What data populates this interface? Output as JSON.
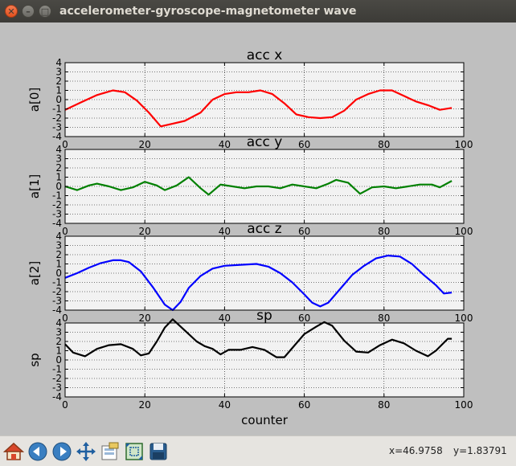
{
  "window": {
    "title": "accelerometer-gyroscope-magnetometer wave",
    "close_glyph": "✕",
    "min_glyph": "–",
    "max_glyph": "□"
  },
  "toolbar": {
    "buttons": [
      {
        "name": "home-button",
        "icon": "home-icon"
      },
      {
        "name": "back-button",
        "icon": "left-arrow-icon"
      },
      {
        "name": "forward-button",
        "icon": "right-arrow-icon"
      },
      {
        "name": "pan-button",
        "icon": "move-icon"
      },
      {
        "name": "configure-subplots-button",
        "icon": "subplots-icon"
      },
      {
        "name": "zoom-button",
        "icon": "zoom-rect-icon"
      },
      {
        "name": "save-button",
        "icon": "floppy-icon"
      }
    ],
    "x_readout": "x=46.9758",
    "y_readout": "y=1.83791"
  },
  "chart_data": [
    {
      "type": "line",
      "title": "acc x",
      "ylabel": "a[0]",
      "xlabel": "",
      "xlim": [
        0,
        100
      ],
      "ylim": [
        -4,
        4
      ],
      "xticks": [
        0,
        20,
        40,
        60,
        80,
        100
      ],
      "yticks": [
        -4,
        -3,
        -2,
        -1,
        0,
        1,
        2,
        3,
        4
      ],
      "grid": true,
      "color": "#ff0000",
      "series": [
        {
          "x": [
            0,
            4,
            8,
            12,
            15,
            18,
            21,
            24,
            27,
            30,
            34,
            37,
            40,
            43,
            46,
            49,
            52,
            55,
            58,
            61,
            64,
            67,
            70,
            73,
            76,
            79,
            82,
            85,
            88,
            91,
            94,
            97
          ],
          "y": [
            -1.1,
            -0.3,
            0.5,
            1.0,
            0.8,
            -0.1,
            -1.4,
            -2.9,
            -2.6,
            -2.3,
            -1.4,
            0.0,
            0.6,
            0.8,
            0.8,
            1.0,
            0.6,
            -0.4,
            -1.6,
            -1.9,
            -2.0,
            -1.9,
            -1.2,
            0.0,
            0.6,
            1.0,
            1.0,
            0.4,
            -0.2,
            -0.6,
            -1.1,
            -0.9
          ]
        }
      ]
    },
    {
      "type": "line",
      "title": "acc y",
      "ylabel": "a[1]",
      "xlabel": "",
      "xlim": [
        0,
        100
      ],
      "ylim": [
        -4,
        4
      ],
      "xticks": [
        0,
        20,
        40,
        60,
        80,
        100
      ],
      "yticks": [
        -4,
        -3,
        -2,
        -1,
        0,
        1,
        2,
        3,
        4
      ],
      "grid": true,
      "color": "#008000",
      "series": [
        {
          "x": [
            0,
            3,
            6,
            8,
            11,
            14,
            17,
            20,
            23,
            25,
            28,
            31,
            34,
            36,
            39,
            42,
            45,
            48,
            51,
            54,
            57,
            60,
            63,
            66,
            68,
            71,
            74,
            77,
            80,
            83,
            86,
            89,
            92,
            94,
            97
          ],
          "y": [
            0.0,
            -0.4,
            0.1,
            0.3,
            0.0,
            -0.4,
            -0.1,
            0.5,
            0.1,
            -0.4,
            0.1,
            1.0,
            -0.2,
            -0.9,
            0.2,
            0.0,
            -0.2,
            0.0,
            0.0,
            -0.2,
            0.2,
            0.0,
            -0.2,
            0.3,
            0.7,
            0.4,
            -0.8,
            -0.1,
            0.0,
            -0.2,
            0.0,
            0.2,
            0.2,
            -0.1,
            0.6
          ]
        }
      ]
    },
    {
      "type": "line",
      "title": "acc z",
      "ylabel": "a[2]",
      "xlabel": "",
      "xlim": [
        0,
        100
      ],
      "ylim": [
        -4,
        4
      ],
      "xticks": [
        0,
        20,
        40,
        60,
        80,
        100
      ],
      "yticks": [
        -4,
        -3,
        -2,
        -1,
        0,
        1,
        2,
        3,
        4
      ],
      "grid": true,
      "color": "#0000ff",
      "series": [
        {
          "x": [
            0,
            3,
            6,
            9,
            12,
            14,
            16,
            19,
            22,
            25,
            27,
            29,
            31,
            34,
            37,
            40,
            44,
            48,
            51,
            54,
            57,
            60,
            62,
            64,
            66,
            69,
            72,
            75,
            78,
            81,
            84,
            87,
            90,
            93,
            95,
            97
          ],
          "y": [
            -0.5,
            0.0,
            0.6,
            1.1,
            1.4,
            1.4,
            1.2,
            0.2,
            -1.5,
            -3.4,
            -4.0,
            -3.1,
            -1.6,
            -0.3,
            0.5,
            0.8,
            0.9,
            1.0,
            0.7,
            0.0,
            -1.0,
            -2.3,
            -3.2,
            -3.6,
            -3.2,
            -1.7,
            -0.2,
            0.8,
            1.6,
            1.9,
            1.8,
            1.0,
            -0.2,
            -1.3,
            -2.2,
            -2.1
          ]
        }
      ]
    },
    {
      "type": "line",
      "title": "sp",
      "ylabel": "sp",
      "xlabel": "counter",
      "xlim": [
        0,
        100
      ],
      "ylim": [
        -4,
        4
      ],
      "xticks": [
        0,
        20,
        40,
        60,
        80,
        100
      ],
      "yticks": [
        -4,
        -3,
        -2,
        -1,
        0,
        1,
        2,
        3,
        4
      ],
      "grid": true,
      "color": "#000000",
      "series": [
        {
          "x": [
            0,
            2,
            5,
            8,
            11,
            14,
            17,
            19,
            21,
            23,
            25,
            27,
            29,
            31,
            33,
            35,
            37,
            39,
            41,
            44,
            47,
            50,
            53,
            55,
            57,
            60,
            63,
            65,
            67,
            70,
            73,
            76,
            79,
            82,
            85,
            88,
            91,
            93,
            96,
            97
          ],
          "y": [
            1.7,
            0.8,
            0.4,
            1.2,
            1.6,
            1.7,
            1.2,
            0.5,
            0.7,
            2.0,
            3.5,
            4.4,
            3.6,
            2.8,
            2.0,
            1.5,
            1.2,
            0.6,
            1.1,
            1.1,
            1.4,
            1.1,
            0.3,
            0.3,
            1.3,
            2.8,
            3.6,
            4.1,
            3.7,
            2.1,
            0.9,
            0.8,
            1.6,
            2.2,
            1.8,
            1.0,
            0.4,
            1.0,
            2.3,
            2.3
          ]
        }
      ]
    }
  ]
}
